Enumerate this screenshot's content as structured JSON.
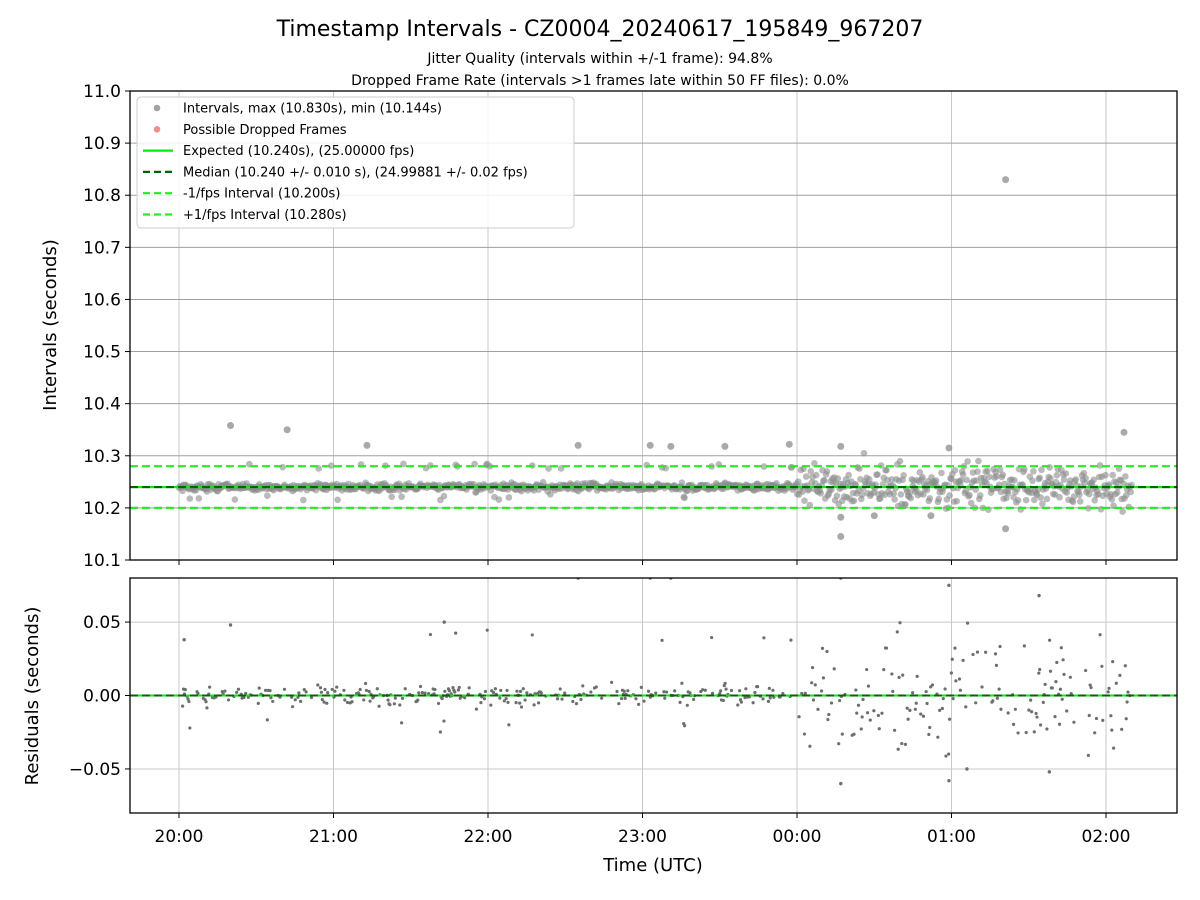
{
  "chart_data": [
    {
      "type": "scatter",
      "title": "Timestamp Intervals - CZ0004_20240617_195849_967207",
      "subtitle_lines": [
        "Jitter Quality (intervals within +/-1 frame): 94.8%",
        "Dropped Frame Rate (intervals >1 frames late within 50 FF files): 0.0%"
      ],
      "ylabel": "Intervals (seconds)",
      "xlabel": "",
      "ylim": [
        10.1,
        11.0
      ],
      "yticks": [
        "10.1",
        "10.2",
        "10.3",
        "10.4",
        "10.5",
        "10.6",
        "10.7",
        "10.8",
        "10.9",
        "11.0"
      ],
      "grid": true,
      "legend_position": "top-left",
      "legend": [
        {
          "label": "Intervals, max (10.830s), min (10.144s)",
          "kind": "dot",
          "color": "#8c8c8c"
        },
        {
          "label": "Possible Dropped Frames",
          "kind": "dot",
          "color": "#f07070"
        },
        {
          "label": "Expected (10.240s), (25.00000 fps)",
          "kind": "line",
          "color": "#00ee00"
        },
        {
          "label": "Median (10.240 +/- 0.010 s), (24.99881 +/- 0.02 fps)",
          "kind": "dash",
          "color": "#006400"
        },
        {
          "label": "-1/fps Interval (10.200s)",
          "kind": "dash",
          "color": "#22ee22"
        },
        {
          "label": "+1/fps Interval (10.280s)",
          "kind": "dash",
          "color": "#22ee22"
        }
      ],
      "reference_lines": [
        {
          "name": "expected",
          "y": 10.24,
          "color": "#00ee00",
          "style": "solid"
        },
        {
          "name": "median",
          "y": 10.24,
          "color": "#006400",
          "style": "dashed"
        },
        {
          "name": "minus-one-frame",
          "y": 10.2,
          "color": "#22ee22",
          "style": "dashed"
        },
        {
          "name": "plus-one-frame",
          "y": 10.28,
          "color": "#22ee22",
          "style": "dashed"
        }
      ],
      "point_color": "#8c8c8c",
      "outlier_points": [
        {
          "x": "20:20",
          "y": 10.358
        },
        {
          "x": "20:42",
          "y": 10.35
        },
        {
          "x": "21:13",
          "y": 10.32
        },
        {
          "x": "22:35",
          "y": 10.32
        },
        {
          "x": "23:03",
          "y": 10.32
        },
        {
          "x": "23:11",
          "y": 10.318
        },
        {
          "x": "23:32",
          "y": 10.318
        },
        {
          "x": "23:57",
          "y": 10.322
        },
        {
          "x": "00:17",
          "y": 10.318
        },
        {
          "x": "00:17",
          "y": 10.145
        },
        {
          "x": "00:59",
          "y": 10.315
        },
        {
          "x": "01:21",
          "y": 10.83
        },
        {
          "x": "01:21",
          "y": 10.16
        },
        {
          "x": "02:07",
          "y": 10.345
        },
        {
          "x": "00:17",
          "y": 10.182
        },
        {
          "x": "00:30",
          "y": 10.185
        },
        {
          "x": "00:52",
          "y": 10.185
        }
      ],
      "bulk_description": "Several thousand interval samples from 20:00 to 02:10 UTC; spread about +/-0.01 s around 10.240 s before 00:00 and about +/-0.04 s after 00:00."
    },
    {
      "type": "scatter",
      "ylabel": "Residuals (seconds)",
      "xlabel": "Time (UTC)",
      "ylim": [
        -0.08,
        0.08
      ],
      "yticks": [
        "−0.05",
        "0.00",
        "0.05"
      ],
      "ytick_values": [
        -0.05,
        0.0,
        0.05
      ],
      "xlim": [
        "19:41",
        "02:27"
      ],
      "xticks": [
        "20:00",
        "21:00",
        "22:00",
        "23:00",
        "00:00",
        "01:00",
        "02:00"
      ],
      "grid": true,
      "reference_lines": [
        {
          "name": "zero",
          "y": 0.0,
          "color": "#00ee00",
          "style": "solid"
        },
        {
          "name": "median-residual",
          "y": 0.0,
          "color": "#006400",
          "style": "dashed"
        }
      ],
      "point_color": "#6e6e6e",
      "outlier_points": [
        {
          "x": "20:20",
          "y": 0.048
        },
        {
          "x": "20:02",
          "y": 0.038
        },
        {
          "x": "21:43",
          "y": 0.05
        },
        {
          "x": "22:35",
          "y": 0.08
        },
        {
          "x": "23:03",
          "y": 0.08
        },
        {
          "x": "23:11",
          "y": 0.08
        },
        {
          "x": "00:17",
          "y": 0.08
        },
        {
          "x": "00:59",
          "y": 0.075
        },
        {
          "x": "01:34",
          "y": 0.068
        },
        {
          "x": "00:17",
          "y": -0.06
        },
        {
          "x": "00:59",
          "y": -0.058
        },
        {
          "x": "01:06",
          "y": -0.05
        },
        {
          "x": "01:38",
          "y": -0.052
        }
      ]
    }
  ]
}
